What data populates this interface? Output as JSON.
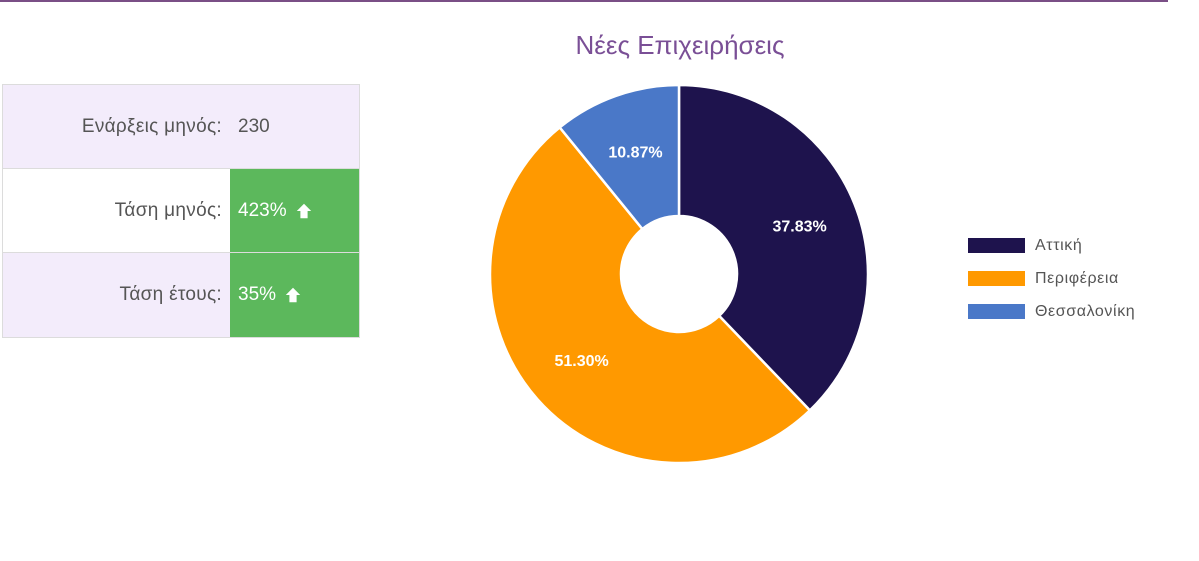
{
  "stats": {
    "rows": [
      {
        "label": "Ενάρξεις μηνός:",
        "value": "230",
        "trend": null
      },
      {
        "label": "Τάση μηνός:",
        "value": "423%",
        "trend": "arrow-up-icon"
      },
      {
        "label": "Τάση έτους:",
        "value": "35%",
        "trend": "arrow-up-icon"
      }
    ],
    "positive_color": "#5cb85c",
    "shaded_row_color": "#f3ecfb"
  },
  "chart_data": {
    "type": "pie",
    "title": "Νέες Επιχειρήσεις",
    "donut": true,
    "legend_position": "right",
    "series": [
      {
        "name": "Αττική",
        "value": 37.83,
        "label": "37.83%",
        "color": "#1e134d"
      },
      {
        "name": "Περιφέρεια",
        "value": 51.3,
        "label": "51.30%",
        "color": "#ff9900"
      },
      {
        "name": "Θεσσαλονίκη",
        "value": 10.87,
        "label": "10.87%",
        "color": "#4a78c8"
      }
    ]
  }
}
